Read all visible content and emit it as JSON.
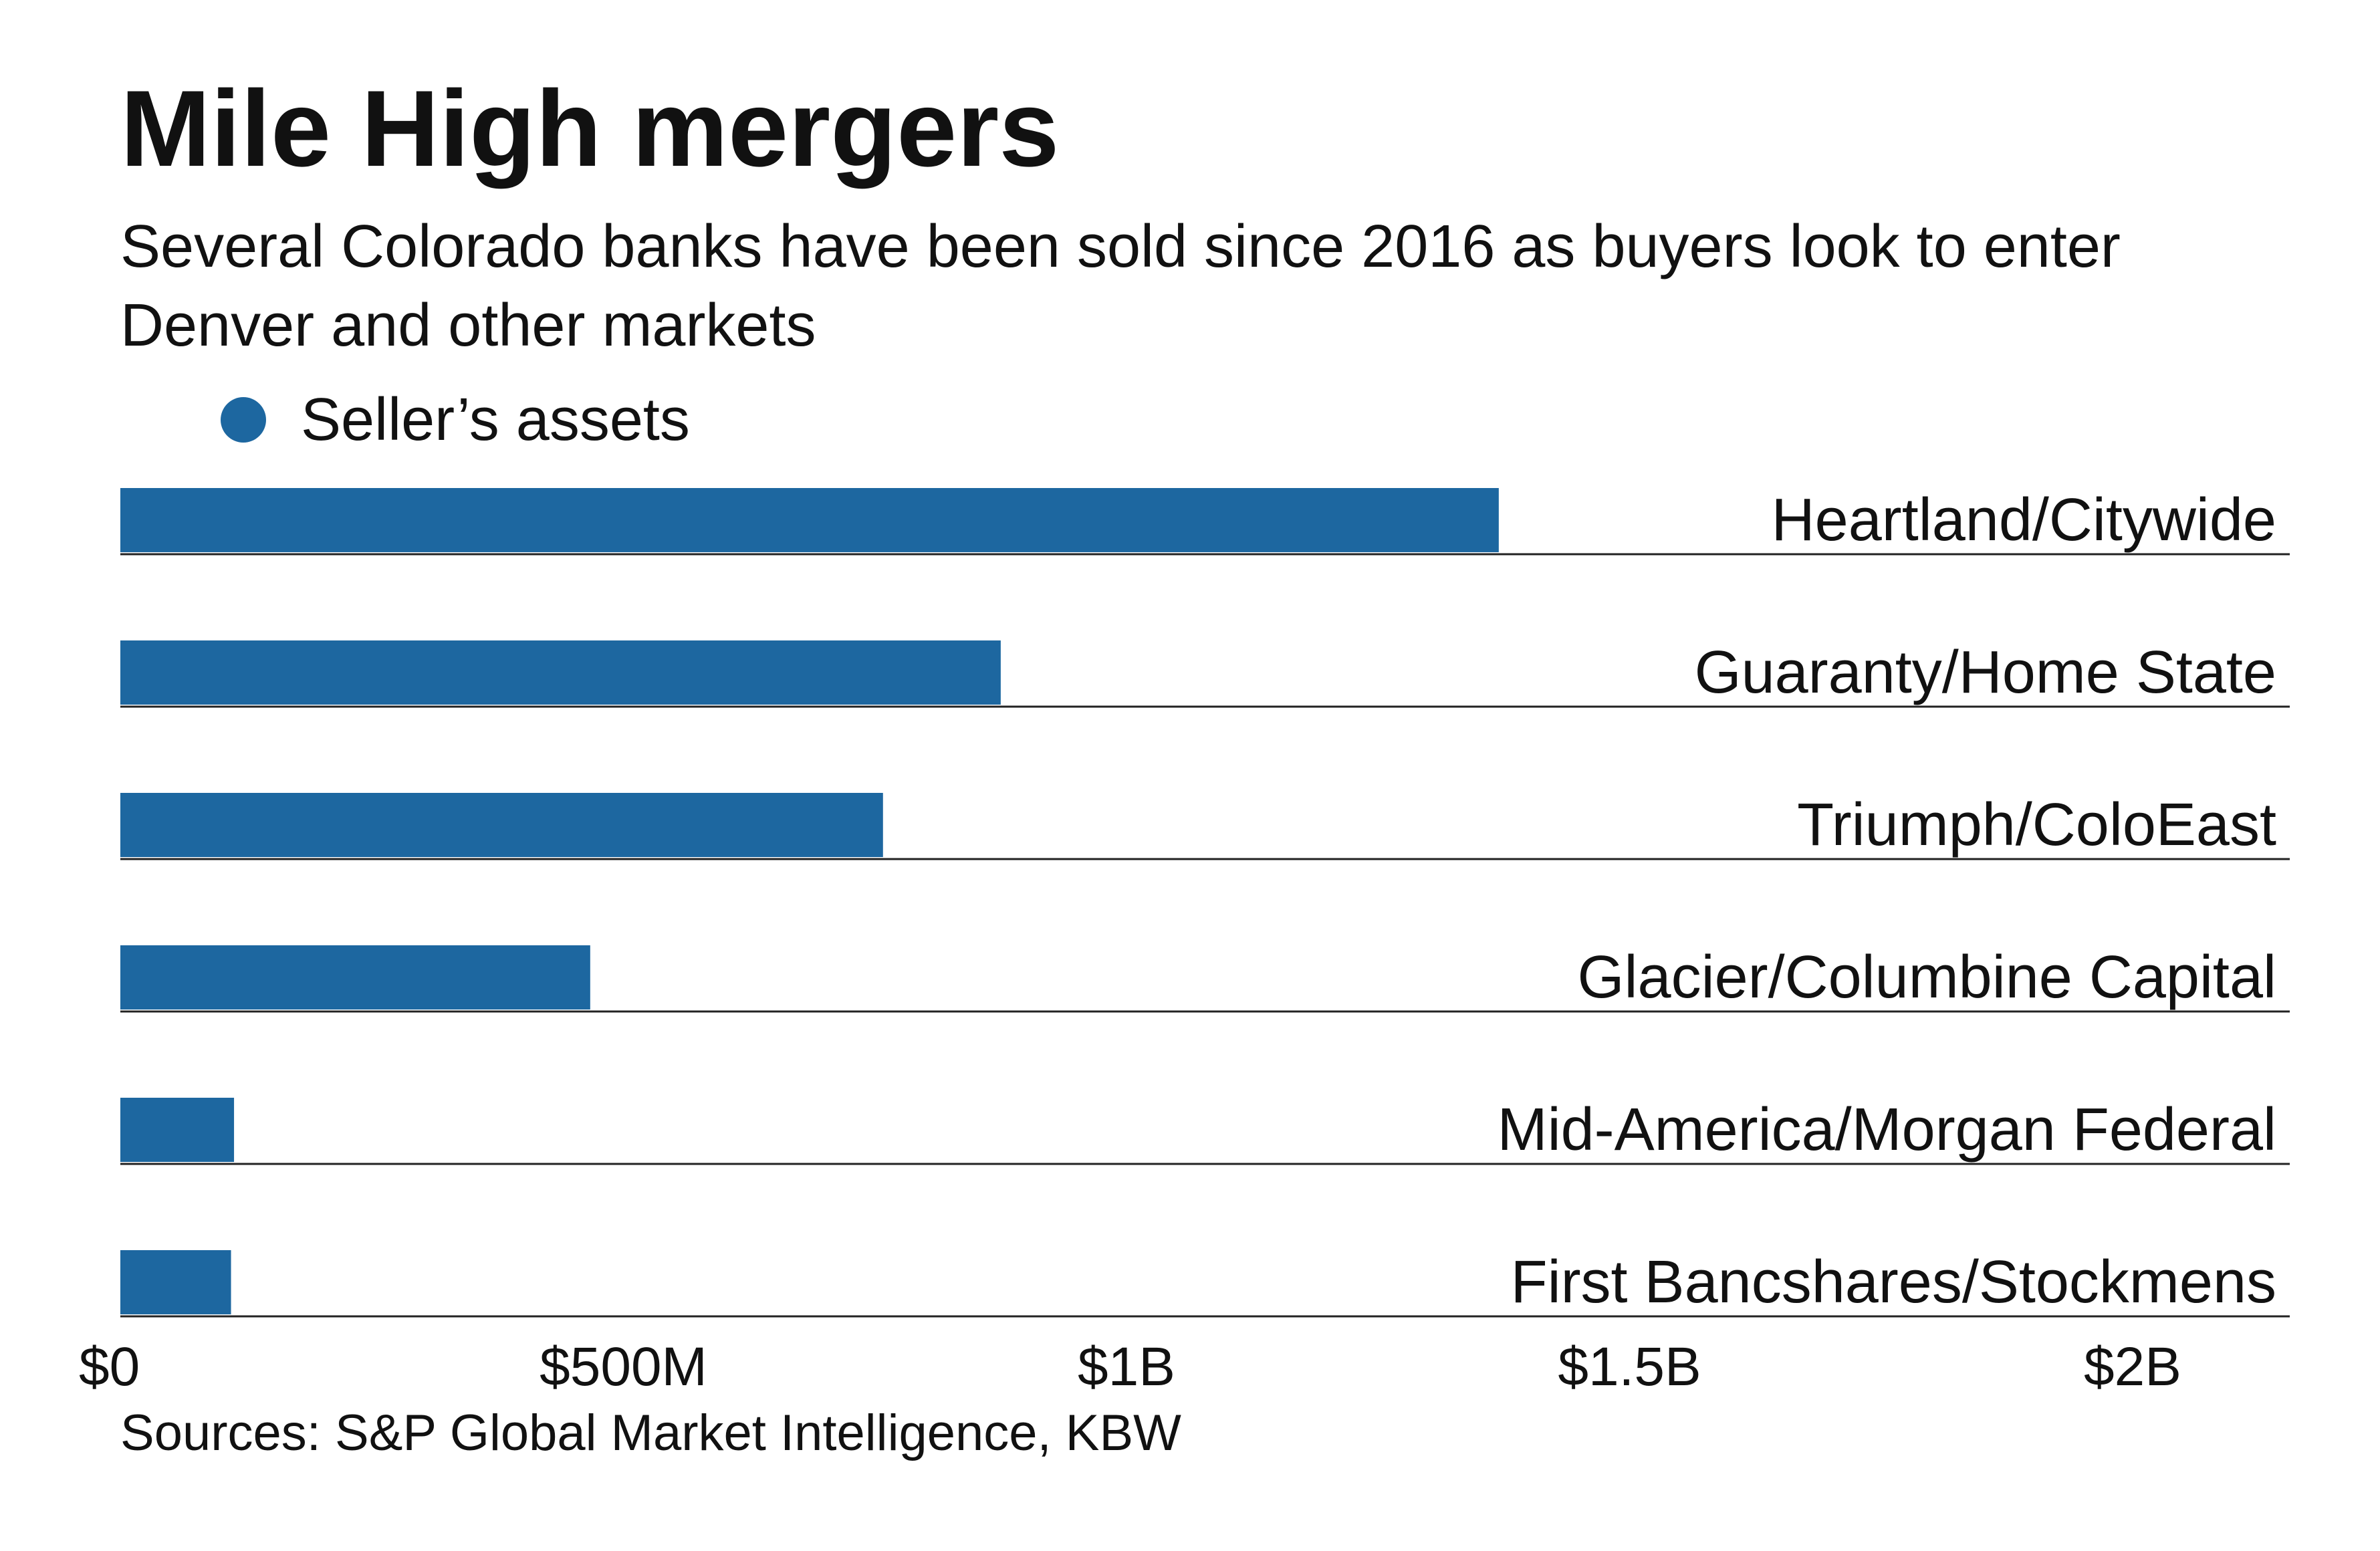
{
  "title": "Mile High mergers",
  "subtitle": "Several Colorado banks have been sold since 2016 as buyers look to enter Denver and other markets",
  "source": "Sources: S&P Global Market Intelligence, KBW",
  "colors": {
    "bar": "#1d67a0",
    "text": "#111111",
    "rule": "#222222"
  },
  "chart_data": {
    "type": "bar",
    "orientation": "horizontal",
    "legend": {
      "position": "top-left",
      "entries": [
        "Seller’s assets"
      ]
    },
    "categories": [
      "Heartland/Citywide",
      "Guaranty/Home State",
      "Triumph/ColoEast",
      "Glacier/Columbine Capital",
      "Mid-America/Morgan Federal",
      "First Bancshares/Stockmens"
    ],
    "series": [
      {
        "name": "Seller’s assets",
        "values": [
          1.37,
          0.875,
          0.758,
          0.467,
          0.113,
          0.11
        ]
      }
    ],
    "value_unit": "billions of dollars",
    "xlim": [
      0,
      2.2
    ],
    "x_ticks": [
      {
        "value": 0,
        "label": "$0"
      },
      {
        "value": 0.5,
        "label": "$500M"
      },
      {
        "value": 1.0,
        "label": "$1B"
      },
      {
        "value": 1.5,
        "label": "$1.5B"
      },
      {
        "value": 2.0,
        "label": "$2B"
      }
    ],
    "grid": false
  }
}
